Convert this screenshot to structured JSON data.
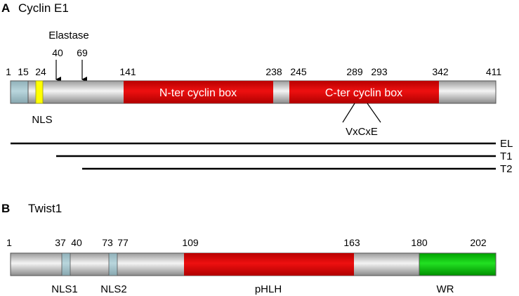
{
  "panel_a": {
    "letter": "A",
    "title": "Cyclin E1",
    "protease_label": "Elastase",
    "cleavage_sites": [
      "40",
      "69"
    ],
    "positions": [
      "1",
      "15",
      "24",
      "141",
      "238",
      "245",
      "289",
      "293",
      "342",
      "411"
    ],
    "domains": {
      "n_cyclin_box": "N-ter cyclin box",
      "c_cyclin_box": "C-ter cyclin box"
    },
    "nls_label": "NLS",
    "motif_label": "VxCxE",
    "fragments": [
      "EL",
      "T1",
      "T2"
    ]
  },
  "panel_b": {
    "letter": "B",
    "title": "Twist1",
    "positions": [
      "1",
      "37",
      "40",
      "73",
      "77",
      "109",
      "163",
      "180",
      "202"
    ],
    "labels": {
      "nls1": "NLS1",
      "nls2": "NLS2",
      "phlh": "pHLH",
      "wr": "WR"
    }
  },
  "colors": {
    "bar_grey": "#d4d4d4",
    "nls_blue": "#a9c7cf",
    "nls_yellow": "#ffff00",
    "cyclin_red": "#e00000",
    "wr_green": "#00cc00"
  }
}
